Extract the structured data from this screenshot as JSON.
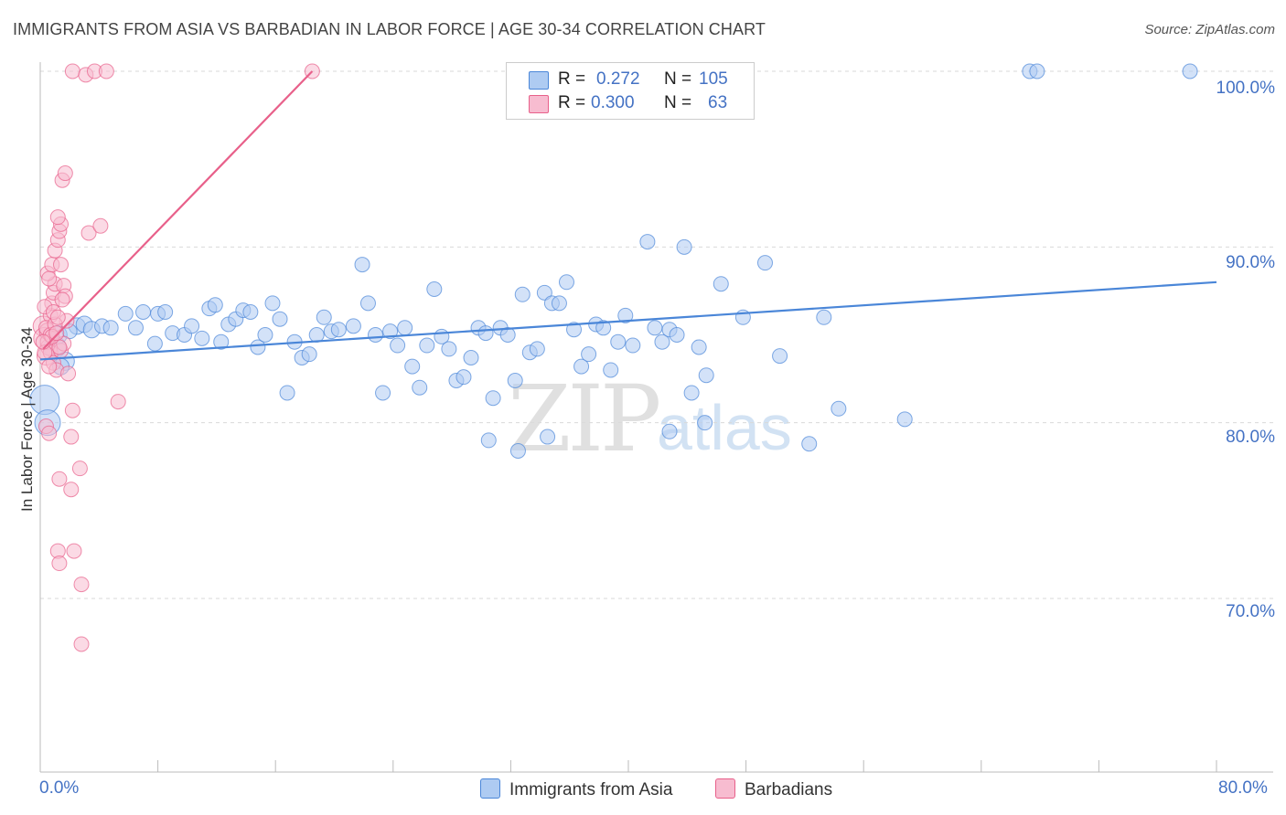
{
  "header": {
    "title": "IMMIGRANTS FROM ASIA VS BARBADIAN IN LABOR FORCE | AGE 30-34 CORRELATION CHART",
    "source": "Source: ZipAtlas.com"
  },
  "watermark": {
    "zip": "ZIP",
    "atlas": "atlas"
  },
  "legend_top": {
    "rows": [
      {
        "r_label": "R =",
        "r_value": "0.272",
        "n_label": "N =",
        "n_value": "105",
        "color": "#aecbf2"
      },
      {
        "r_label": "R =",
        "r_value": "0.300",
        "n_label": "N =",
        "n_value": "63",
        "color": "#f7bcd0"
      }
    ]
  },
  "chart_data": {
    "type": "scatter",
    "title": "IMMIGRANTS FROM ASIA VS BARBADIAN IN LABOR FORCE | AGE 30-34 CORRELATION CHART",
    "xlabel": "",
    "ylabel": "In Labor Force | Age 30-34",
    "xlim": [
      0,
      80
    ],
    "ylim": [
      61,
      101
    ],
    "x_tick_labels": [
      "0.0%",
      "80.0%"
    ],
    "y_ticks": [
      70,
      80,
      90,
      100
    ],
    "y_tick_labels": [
      "70.0%",
      "80.0%",
      "90.0%",
      "100.0%"
    ],
    "grid": true,
    "legend": [
      "Immigrants from Asia",
      "Barbadians"
    ],
    "series": [
      {
        "name": "Immigrants from Asia",
        "color": "#4a86d8",
        "fill": "#aecbf2",
        "trend": {
          "x": [
            0,
            80
          ],
          "y": [
            83.6,
            88.0
          ]
        },
        "points": [
          [
            0.3,
            81.3,
            16
          ],
          [
            0.5,
            80.0,
            14
          ],
          [
            1.0,
            84.3,
            12
          ],
          [
            1.2,
            85.0,
            10
          ],
          [
            1.7,
            83.5,
            10
          ],
          [
            1.4,
            83.2,
            9
          ],
          [
            2.5,
            85.5,
            9
          ],
          [
            3.0,
            85.6,
            9
          ],
          [
            3.5,
            85.3,
            9
          ],
          [
            4.2,
            85.5,
            8
          ],
          [
            6.5,
            85.4,
            8
          ],
          [
            7.0,
            86.3,
            8
          ],
          [
            8.0,
            86.2,
            8
          ],
          [
            8.5,
            86.3,
            8
          ],
          [
            7.8,
            84.5,
            8
          ],
          [
            9.0,
            85.1,
            8
          ],
          [
            9.8,
            85.0,
            8
          ],
          [
            10.3,
            85.5,
            8
          ],
          [
            11.0,
            84.8,
            8
          ],
          [
            11.5,
            86.5,
            8
          ],
          [
            11.9,
            86.7,
            8
          ],
          [
            12.3,
            84.6,
            8
          ],
          [
            12.8,
            85.6,
            8
          ],
          [
            13.3,
            85.9,
            8
          ],
          [
            13.8,
            86.4,
            8
          ],
          [
            14.3,
            86.3,
            8
          ],
          [
            14.8,
            84.3,
            8
          ],
          [
            15.3,
            85.0,
            8
          ],
          [
            15.8,
            86.8,
            8
          ],
          [
            16.3,
            85.9,
            8
          ],
          [
            16.8,
            81.7,
            8
          ],
          [
            17.3,
            84.6,
            8
          ],
          [
            17.8,
            83.7,
            8
          ],
          [
            18.3,
            83.9,
            8
          ],
          [
            18.8,
            85.0,
            8
          ],
          [
            19.3,
            86.0,
            8
          ],
          [
            19.8,
            85.2,
            8
          ],
          [
            20.3,
            85.3,
            8
          ],
          [
            21.3,
            85.5,
            8
          ],
          [
            21.9,
            89.0,
            8
          ],
          [
            22.3,
            86.8,
            8
          ],
          [
            22.8,
            85.0,
            8
          ],
          [
            23.3,
            81.7,
            8
          ],
          [
            23.8,
            85.2,
            8
          ],
          [
            24.3,
            84.4,
            8
          ],
          [
            24.8,
            85.4,
            8
          ],
          [
            25.3,
            83.2,
            8
          ],
          [
            25.8,
            82.0,
            8
          ],
          [
            26.3,
            84.4,
            8
          ],
          [
            26.8,
            87.6,
            8
          ],
          [
            27.3,
            84.9,
            8
          ],
          [
            27.8,
            84.2,
            8
          ],
          [
            28.3,
            82.4,
            8
          ],
          [
            28.8,
            82.6,
            8
          ],
          [
            29.3,
            83.7,
            8
          ],
          [
            29.8,
            85.4,
            8
          ],
          [
            30.3,
            85.1,
            8
          ],
          [
            30.8,
            81.4,
            8
          ],
          [
            31.3,
            85.4,
            8
          ],
          [
            31.8,
            85.0,
            8
          ],
          [
            32.3,
            82.4,
            8
          ],
          [
            32.8,
            87.3,
            8
          ],
          [
            33.3,
            84.0,
            8
          ],
          [
            33.8,
            84.2,
            8
          ],
          [
            34.3,
            87.4,
            8
          ],
          [
            34.8,
            86.8,
            8
          ],
          [
            35.3,
            86.8,
            8
          ],
          [
            35.8,
            88.0,
            8
          ],
          [
            36.3,
            85.3,
            8
          ],
          [
            36.8,
            83.2,
            8
          ],
          [
            37.3,
            83.9,
            8
          ],
          [
            37.8,
            85.6,
            8
          ],
          [
            38.3,
            85.4,
            8
          ],
          [
            38.8,
            83.0,
            8
          ],
          [
            39.3,
            84.6,
            8
          ],
          [
            39.8,
            86.1,
            8
          ],
          [
            40.3,
            84.4,
            8
          ],
          [
            41.3,
            90.3,
            8
          ],
          [
            41.8,
            85.4,
            8
          ],
          [
            42.3,
            84.6,
            8
          ],
          [
            42.8,
            85.3,
            8
          ],
          [
            43.3,
            85.0,
            8
          ],
          [
            43.8,
            90.0,
            8
          ],
          [
            44.3,
            81.7,
            8
          ],
          [
            44.8,
            84.3,
            8
          ],
          [
            45.3,
            82.7,
            8
          ],
          [
            46.3,
            87.9,
            8
          ],
          [
            47.8,
            86.0,
            8
          ],
          [
            49.3,
            89.1,
            8
          ],
          [
            53.3,
            86.0,
            8
          ],
          [
            30.5,
            79.0,
            8
          ],
          [
            32.5,
            78.4,
            8
          ],
          [
            34.5,
            79.2,
            8
          ],
          [
            42.8,
            79.5,
            8
          ],
          [
            45.2,
            80.0,
            8
          ],
          [
            52.3,
            78.8,
            8
          ],
          [
            54.3,
            80.8,
            8
          ],
          [
            58.8,
            80.2,
            8
          ],
          [
            50.3,
            83.8,
            8
          ],
          [
            67.3,
            100.0,
            8
          ],
          [
            67.8,
            100.0,
            8
          ],
          [
            78.2,
            100.0,
            8
          ],
          [
            4.8,
            85.4,
            8
          ],
          [
            5.8,
            86.2,
            8
          ],
          [
            2.0,
            85.2,
            8
          ]
        ]
      },
      {
        "name": "Barbadians",
        "color": "#e8608a",
        "fill": "#f7bcd0",
        "trend": {
          "x": [
            0.2,
            18.5
          ],
          "y": [
            84.2,
            100.0
          ]
        },
        "points": [
          [
            0.2,
            85.5,
            11
          ],
          [
            0.3,
            84.8,
            12
          ],
          [
            0.4,
            83.8,
            10
          ],
          [
            0.5,
            85.2,
            9
          ],
          [
            0.6,
            84.3,
            9
          ],
          [
            0.7,
            86.1,
            8
          ],
          [
            0.8,
            86.8,
            8
          ],
          [
            0.9,
            87.4,
            8
          ],
          [
            1.0,
            87.9,
            8
          ],
          [
            0.5,
            88.5,
            8
          ],
          [
            0.6,
            88.2,
            8
          ],
          [
            0.8,
            89.0,
            8
          ],
          [
            1.0,
            89.8,
            8
          ],
          [
            1.2,
            90.4,
            8
          ],
          [
            1.3,
            90.9,
            8
          ],
          [
            1.4,
            91.3,
            8
          ],
          [
            1.2,
            91.7,
            8
          ],
          [
            1.5,
            93.8,
            8
          ],
          [
            1.7,
            94.2,
            8
          ],
          [
            1.4,
            89.0,
            8
          ],
          [
            1.6,
            87.8,
            8
          ],
          [
            1.7,
            87.2,
            8
          ],
          [
            1.8,
            85.8,
            8
          ],
          [
            0.4,
            85.4,
            8
          ],
          [
            0.5,
            84.6,
            8
          ],
          [
            0.7,
            84.0,
            8
          ],
          [
            0.9,
            83.4,
            8
          ],
          [
            1.1,
            83.0,
            8
          ],
          [
            1.4,
            84.1,
            8
          ],
          [
            1.6,
            84.5,
            8
          ],
          [
            1.3,
            84.3,
            8
          ],
          [
            1.9,
            82.8,
            8
          ],
          [
            0.3,
            84.0,
            8
          ],
          [
            0.4,
            79.8,
            8
          ],
          [
            0.6,
            79.4,
            8
          ],
          [
            2.1,
            79.2,
            8
          ],
          [
            1.3,
            76.8,
            8
          ],
          [
            2.1,
            76.2,
            8
          ],
          [
            2.7,
            77.4,
            8
          ],
          [
            1.2,
            72.7,
            8
          ],
          [
            1.3,
            72.0,
            8
          ],
          [
            2.3,
            72.7,
            8
          ],
          [
            2.8,
            70.8,
            8
          ],
          [
            2.8,
            67.4,
            8
          ],
          [
            2.2,
            80.7,
            8
          ],
          [
            5.3,
            81.2,
            8
          ],
          [
            3.3,
            90.8,
            8
          ],
          [
            4.1,
            91.2,
            8
          ],
          [
            2.2,
            100.0,
            8
          ],
          [
            3.1,
            99.8,
            8
          ],
          [
            3.7,
            100.0,
            8
          ],
          [
            4.5,
            100.0,
            8
          ],
          [
            18.5,
            100.0,
            8
          ],
          [
            0.7,
            85.0,
            8
          ],
          [
            1.0,
            85.6,
            8
          ],
          [
            0.3,
            86.6,
            8
          ],
          [
            0.8,
            84.9,
            8
          ],
          [
            1.1,
            85.1,
            8
          ],
          [
            0.2,
            84.6,
            8
          ],
          [
            0.9,
            86.3,
            8
          ],
          [
            1.5,
            87.0,
            8
          ],
          [
            0.6,
            83.2,
            8
          ],
          [
            1.2,
            86.0,
            8
          ]
        ]
      }
    ]
  }
}
